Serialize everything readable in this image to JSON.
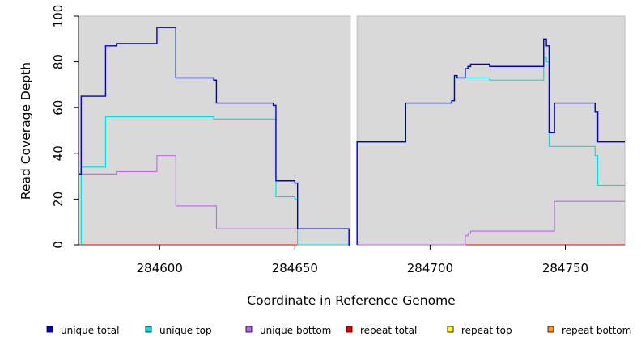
{
  "chart_data": {
    "type": "line",
    "xlabel": "Coordinate in Reference Genome",
    "ylabel": "Read Coverage Depth",
    "xlim": [
      284570,
      284772
    ],
    "ylim": [
      0,
      100
    ],
    "x_ticks": [
      284600,
      284650,
      284700,
      284750
    ],
    "y_ticks": [
      0,
      20,
      40,
      60,
      80,
      100
    ],
    "grid": false,
    "legend_position": "bottom",
    "background_color": "#d9d9d9",
    "panels": [
      {
        "x_start": 284570,
        "x_end": 284670.5
      },
      {
        "x_start": 284673,
        "x_end": 284772
      }
    ],
    "series": [
      {
        "name": "unique total",
        "color": "#0000cc",
        "segments": [
          [
            [
              284570,
              31
            ],
            [
              284571,
              31
            ],
            [
              284571,
              65
            ],
            [
              284575,
              65
            ],
            [
              284575,
              65
            ],
            [
              284580,
              65
            ],
            [
              284580,
              87
            ],
            [
              284584,
              87
            ],
            [
              284584,
              88
            ],
            [
              284599,
              88
            ],
            [
              284599,
              95
            ],
            [
              284606,
              95
            ],
            [
              284606,
              73
            ],
            [
              284620,
              73
            ],
            [
              284620,
              72
            ],
            [
              284621,
              72
            ],
            [
              284621,
              62
            ],
            [
              284642,
              62
            ],
            [
              284642,
              61
            ],
            [
              284643,
              61
            ],
            [
              284643,
              28
            ],
            [
              284650,
              28
            ],
            [
              284650,
              27
            ],
            [
              284651,
              27
            ],
            [
              284651,
              7
            ],
            [
              284670,
              7
            ],
            [
              284670,
              0
            ],
            [
              284670.5,
              0
            ]
          ],
          [
            [
              284673,
              0
            ],
            [
              284673,
              45
            ],
            [
              284691,
              45
            ],
            [
              284691,
              62
            ],
            [
              284708,
              62
            ],
            [
              284708,
              63
            ],
            [
              284709,
              63
            ],
            [
              284709,
              74
            ],
            [
              284710,
              74
            ],
            [
              284710,
              73
            ],
            [
              284713,
              73
            ],
            [
              284713,
              77
            ],
            [
              284714,
              77
            ],
            [
              284714,
              78
            ],
            [
              284715,
              78
            ],
            [
              284715,
              79
            ],
            [
              284722,
              79
            ],
            [
              284722,
              78
            ],
            [
              284742,
              78
            ],
            [
              284742,
              90
            ],
            [
              284743,
              90
            ],
            [
              284743,
              87
            ],
            [
              284744,
              87
            ],
            [
              284744,
              49
            ],
            [
              284746,
              49
            ],
            [
              284746,
              62
            ],
            [
              284761,
              62
            ],
            [
              284761,
              58
            ],
            [
              284762,
              58
            ],
            [
              284762,
              45
            ],
            [
              284772,
              45
            ]
          ]
        ]
      },
      {
        "name": "unique top",
        "color": "#00dddd",
        "segments": [
          [
            [
              284571,
              0
            ],
            [
              284571,
              34
            ],
            [
              284580,
              34
            ],
            [
              284580,
              56
            ],
            [
              284620,
              56
            ],
            [
              284620,
              55
            ],
            [
              284642,
              55
            ],
            [
              284642,
              55
            ],
            [
              284643,
              55
            ],
            [
              284643,
              21
            ],
            [
              284650,
              21
            ],
            [
              284650,
              20
            ],
            [
              284651,
              20
            ],
            [
              284651,
              0
            ],
            [
              284670.5,
              0
            ]
          ],
          [
            [
              284673,
              0
            ],
            [
              284673,
              45
            ],
            [
              284691,
              45
            ],
            [
              284691,
              62
            ],
            [
              284708,
              62
            ],
            [
              284708,
              63
            ],
            [
              284709,
              63
            ],
            [
              284709,
              73
            ],
            [
              284722,
              73
            ],
            [
              284722,
              72
            ],
            [
              284742,
              72
            ],
            [
              284742,
              82
            ],
            [
              284743,
              82
            ],
            [
              284743,
              80
            ],
            [
              284744,
              80
            ],
            [
              284744,
              43
            ],
            [
              284761,
              43
            ],
            [
              284761,
              39
            ],
            [
              284762,
              39
            ],
            [
              284762,
              26
            ],
            [
              284772,
              26
            ]
          ]
        ]
      },
      {
        "name": "unique bottom",
        "color": "#bb66ee",
        "segments": [
          [
            [
              284570,
              31
            ],
            [
              284584,
              31
            ],
            [
              284584,
              32
            ],
            [
              284599,
              32
            ],
            [
              284599,
              39
            ],
            [
              284606,
              39
            ],
            [
              284606,
              17
            ],
            [
              284621,
              17
            ],
            [
              284621,
              7
            ],
            [
              284670,
              7
            ],
            [
              284670,
              0
            ],
            [
              284670.5,
              0
            ]
          ],
          [
            [
              284673,
              0
            ],
            [
              284713,
              0
            ],
            [
              284713,
              4
            ],
            [
              284714,
              4
            ],
            [
              284714,
              5
            ],
            [
              284715,
              5
            ],
            [
              284715,
              6
            ],
            [
              284746,
              6
            ],
            [
              284746,
              19
            ],
            [
              284772,
              19
            ]
          ]
        ]
      },
      {
        "name": "repeat total",
        "color": "#ee0000",
        "segments": [
          [
            [
              284570,
              0
            ],
            [
              284670.5,
              0
            ]
          ],
          [
            [
              284673,
              0
            ],
            [
              284772,
              0
            ]
          ]
        ]
      },
      {
        "name": "repeat top",
        "color": "#ffff00",
        "segments": [
          [
            [
              284570,
              0
            ],
            [
              284670.5,
              0
            ]
          ],
          [
            [
              284673,
              0
            ],
            [
              284772,
              0
            ]
          ]
        ]
      },
      {
        "name": "repeat bottom",
        "color": "#ff9900",
        "segments": [
          [
            [
              284570,
              0
            ],
            [
              284670.5,
              0
            ]
          ],
          [
            [
              284673,
              0
            ],
            [
              284772,
              0
            ]
          ]
        ]
      }
    ]
  }
}
